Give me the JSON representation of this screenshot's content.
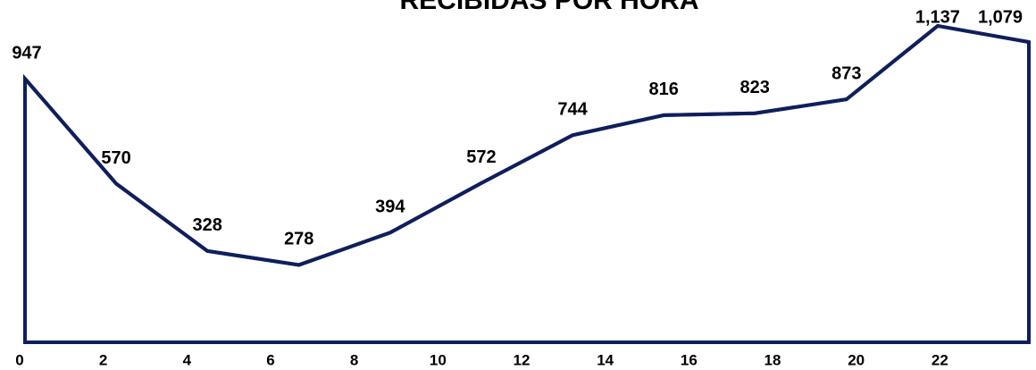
{
  "chart_data": {
    "type": "line",
    "title": "RECIBIDAS POR HORA",
    "x": [
      0,
      2.18,
      4.36,
      6.55,
      8.73,
      10.91,
      13.09,
      15.27,
      17.45,
      19.64,
      21.82,
      24
    ],
    "series": [
      {
        "name": "Recibidas",
        "color": "#0f1f5c",
        "values": [
          947,
          570,
          328,
          278,
          394,
          572,
          744,
          816,
          823,
          873,
          1137,
          1079
        ],
        "value_labels": [
          "947",
          "570",
          "328",
          "278",
          "394",
          "572",
          "744",
          "816",
          "823",
          "873",
          "1,137",
          "1,079"
        ]
      }
    ],
    "xlim": [
      0,
      24
    ],
    "xticks": [
      0,
      2,
      4,
      6,
      8,
      10,
      12,
      14,
      16,
      18,
      20,
      22
    ],
    "ylim": [
      0,
      1230
    ]
  }
}
